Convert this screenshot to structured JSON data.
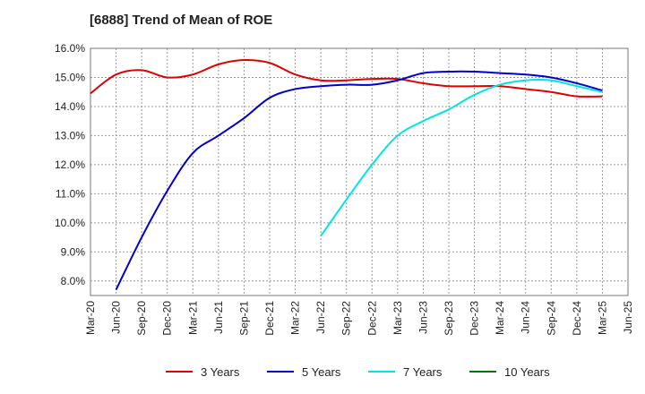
{
  "chart_data": {
    "type": "line",
    "title": "[6888]  Trend of Mean of ROE",
    "xlabel": "",
    "ylabel": "",
    "ylim": [
      7.5,
      16.0
    ],
    "y_ticks": [
      "8.0%",
      "9.0%",
      "10.0%",
      "11.0%",
      "12.0%",
      "13.0%",
      "14.0%",
      "15.0%",
      "16.0%"
    ],
    "y_tick_values": [
      8,
      9,
      10,
      11,
      12,
      13,
      14,
      15,
      16
    ],
    "x_ticks": [
      "Mar-20",
      "Jun-20",
      "Sep-20",
      "Dec-20",
      "Mar-21",
      "Jun-21",
      "Sep-21",
      "Dec-21",
      "Mar-22",
      "Jun-22",
      "Sep-22",
      "Dec-22",
      "Mar-23",
      "Jun-23",
      "Sep-23",
      "Dec-23",
      "Mar-24",
      "Jun-24",
      "Sep-24",
      "Dec-24",
      "Mar-25",
      "Jun-25"
    ],
    "grid": true,
    "legend_position": "bottom",
    "series": [
      {
        "name": "3 Years",
        "color": "#e00000",
        "x": [
          "Mar-20",
          "Jun-20",
          "Sep-20",
          "Dec-20",
          "Mar-21",
          "Jun-21",
          "Sep-21",
          "Dec-21",
          "Mar-22",
          "Jun-22",
          "Sep-22",
          "Dec-22",
          "Mar-23",
          "Jun-23",
          "Sep-23",
          "Dec-23",
          "Mar-24",
          "Jun-24",
          "Sep-24",
          "Dec-24",
          "Mar-25"
        ],
        "values": [
          14.45,
          15.1,
          15.25,
          15.0,
          15.1,
          15.45,
          15.6,
          15.5,
          15.1,
          14.9,
          14.9,
          14.95,
          14.95,
          14.8,
          14.7,
          14.7,
          14.7,
          14.6,
          14.5,
          14.35,
          14.35
        ]
      },
      {
        "name": "5 Years",
        "color": "#0000cc",
        "x": [
          "Jun-20",
          "Sep-20",
          "Dec-20",
          "Mar-21",
          "Jun-21",
          "Sep-21",
          "Dec-21",
          "Mar-22",
          "Jun-22",
          "Sep-22",
          "Dec-22",
          "Mar-23",
          "Jun-23",
          "Sep-23",
          "Dec-23",
          "Mar-24",
          "Jun-24",
          "Sep-24",
          "Dec-24",
          "Mar-25"
        ],
        "values": [
          7.7,
          9.5,
          11.1,
          12.4,
          13.0,
          13.6,
          14.3,
          14.6,
          14.7,
          14.75,
          14.75,
          14.9,
          15.15,
          15.2,
          15.2,
          15.15,
          15.1,
          15.0,
          14.8,
          14.55
        ]
      },
      {
        "name": "7 Years",
        "color": "#00e5e5",
        "x": [
          "Jun-22",
          "Sep-22",
          "Dec-22",
          "Mar-23",
          "Jun-23",
          "Sep-23",
          "Dec-23",
          "Mar-24",
          "Jun-24",
          "Sep-24",
          "Dec-24",
          "Mar-25"
        ],
        "values": [
          9.55,
          10.8,
          12.0,
          13.0,
          13.5,
          13.9,
          14.4,
          14.75,
          14.9,
          14.9,
          14.7,
          14.5
        ]
      },
      {
        "name": "10 Years",
        "color": "#007700",
        "x": [],
        "values": []
      }
    ]
  }
}
